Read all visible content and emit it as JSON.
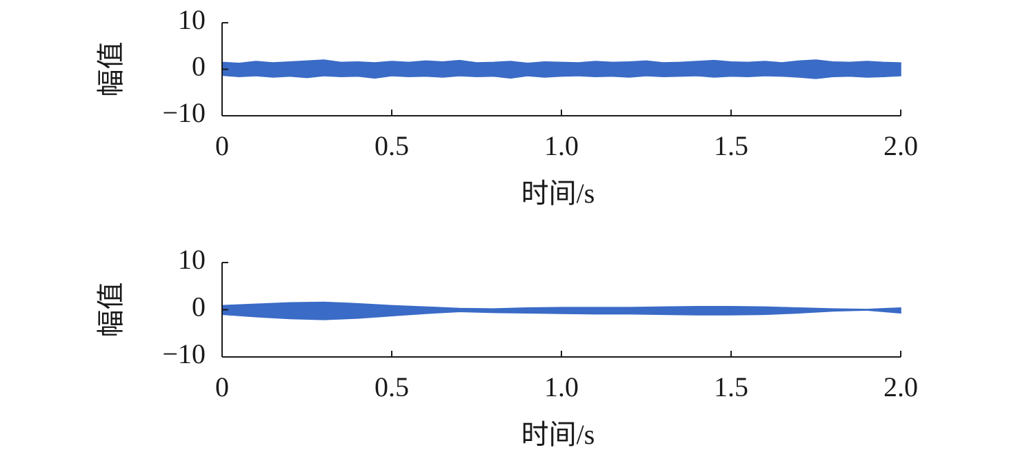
{
  "chart_data": [
    {
      "type": "band",
      "x_label": "时间/s",
      "y_label": "幅值",
      "color": "#3a6bc6",
      "x": [
        0,
        0.05,
        0.1,
        0.15,
        0.2,
        0.25,
        0.3,
        0.35,
        0.4,
        0.45,
        0.5,
        0.55,
        0.6,
        0.65,
        0.7,
        0.75,
        0.8,
        0.85,
        0.9,
        0.95,
        1,
        1.05,
        1.1,
        1.15,
        1.2,
        1.25,
        1.3,
        1.35,
        1.4,
        1.45,
        1.5,
        1.55,
        1.6,
        1.65,
        1.7,
        1.75,
        1.8,
        1.85,
        1.9,
        1.95,
        2
      ],
      "upper": [
        1.5,
        1.3,
        1.7,
        1.4,
        1.6,
        1.8,
        2.0,
        1.5,
        1.6,
        1.4,
        1.7,
        1.5,
        1.8,
        1.6,
        1.9,
        1.4,
        1.5,
        1.7,
        1.3,
        1.6,
        1.5,
        1.4,
        1.7,
        1.5,
        1.6,
        1.8,
        1.4,
        1.5,
        1.7,
        1.9,
        1.6,
        1.5,
        1.7,
        1.4,
        1.8,
        2.0,
        1.6,
        1.5,
        1.7,
        1.5,
        1.4
      ],
      "lower": [
        -1.3,
        -1.6,
        -1.4,
        -1.7,
        -1.5,
        -1.8,
        -1.4,
        -1.6,
        -1.5,
        -1.9,
        -1.4,
        -1.6,
        -1.5,
        -1.7,
        -1.4,
        -1.6,
        -1.5,
        -1.9,
        -1.4,
        -1.7,
        -1.5,
        -1.4,
        -1.6,
        -1.5,
        -1.7,
        -1.4,
        -1.6,
        -1.5,
        -1.4,
        -1.7,
        -1.5,
        -1.6,
        -1.4,
        -1.5,
        -1.7,
        -2.0,
        -1.6,
        -1.5,
        -1.7,
        -1.6,
        -1.4
      ],
      "xlim": [
        0,
        2
      ],
      "xticks": [
        0,
        0.5,
        {
          "value": 1,
          "label": "1.0"
        },
        1.5,
        {
          "value": 2,
          "label": "2.0"
        }
      ],
      "ylim": [
        -10,
        10
      ],
      "yticks": [
        {
          "value": -10,
          "label": "−10"
        },
        0,
        10
      ]
    },
    {
      "type": "band",
      "x_label": "时间/s",
      "y_label": "幅值",
      "color": "#3a6bc6",
      "x": [
        0,
        0.1,
        0.2,
        0.3,
        0.4,
        0.5,
        0.6,
        0.7,
        0.8,
        0.9,
        1,
        1.1,
        1.2,
        1.3,
        1.4,
        1.5,
        1.6,
        1.7,
        1.8,
        1.9,
        2
      ],
      "upper": [
        0.9,
        1.2,
        1.5,
        1.6,
        1.3,
        0.9,
        0.6,
        0.3,
        0.2,
        0.4,
        0.5,
        0.5,
        0.5,
        0.6,
        0.7,
        0.7,
        0.6,
        0.4,
        0.2,
        0.1,
        0.4
      ],
      "lower": [
        -1.0,
        -1.5,
        -1.9,
        -2.1,
        -1.8,
        -1.3,
        -0.8,
        -0.4,
        -0.6,
        -0.7,
        -0.8,
        -0.9,
        -0.9,
        -1.0,
        -1.1,
        -1.1,
        -1.0,
        -0.7,
        -0.3,
        -0.1,
        -0.7
      ],
      "xlim": [
        0,
        2
      ],
      "xticks": [
        0,
        0.5,
        {
          "value": 1,
          "label": "1.0"
        },
        1.5,
        {
          "value": 2,
          "label": "2.0"
        }
      ],
      "ylim": [
        -10,
        10
      ],
      "yticks": [
        {
          "value": -10,
          "label": "−10"
        },
        0,
        10
      ]
    }
  ]
}
